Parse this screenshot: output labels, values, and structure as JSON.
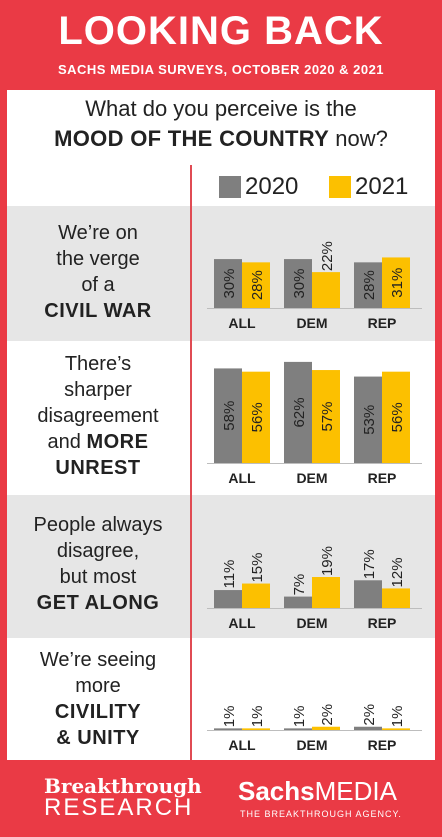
{
  "header": {
    "title": "LOOKING BACK",
    "subtitle": "SACHS MEDIA SURVEYS, OCTOBER 2020 & 2021"
  },
  "question": {
    "line1": "What do you perceive is the",
    "line2_bold": "MOOD OF THE COUNTRY",
    "line2_rest": " now?"
  },
  "colors": {
    "frame": "#ea3a45",
    "series_2020": "#7f7f7f",
    "series_2021": "#fcc000",
    "shaded_row": "#e6e6e6"
  },
  "chart_data": {
    "type": "bar",
    "categories": [
      "ALL",
      "DEM",
      "REP"
    ],
    "series_names": [
      "2020",
      "2021"
    ],
    "ylim": [
      0,
      65
    ],
    "panels": [
      {
        "label_lines": [
          "We’re on",
          "the verge",
          "of a"
        ],
        "label_bold": [
          "CIVIL WAR"
        ],
        "values_2020": [
          30,
          30,
          28
        ],
        "values_2021": [
          28,
          22,
          31
        ]
      },
      {
        "label_lines": [
          "There’s",
          "sharper",
          "disagreement"
        ],
        "label_bold_inline": {
          "prefix": "and ",
          "bold": "MORE"
        },
        "label_bold": [
          "UNREST"
        ],
        "values_2020": [
          58,
          62,
          53
        ],
        "values_2021": [
          56,
          57,
          56
        ]
      },
      {
        "label_lines": [
          "People always",
          "disagree,",
          "but most"
        ],
        "label_bold": [
          "GET ALONG"
        ],
        "values_2020": [
          11,
          7,
          17
        ],
        "values_2021": [
          15,
          19,
          12
        ]
      },
      {
        "label_lines": [
          "We’re seeing",
          "more"
        ],
        "label_bold": [
          "CIVILITY",
          "& UNITY"
        ],
        "values_2020": [
          1,
          1,
          2
        ],
        "values_2021": [
          1,
          2,
          1
        ]
      }
    ]
  },
  "footer": {
    "left_top": "Breakthrough",
    "left_bottom": "RESEARCH",
    "right_bold": "Sachs",
    "right_rest": "MEDIA",
    "right_tag": "THE BREAKTHROUGH AGENCY."
  }
}
